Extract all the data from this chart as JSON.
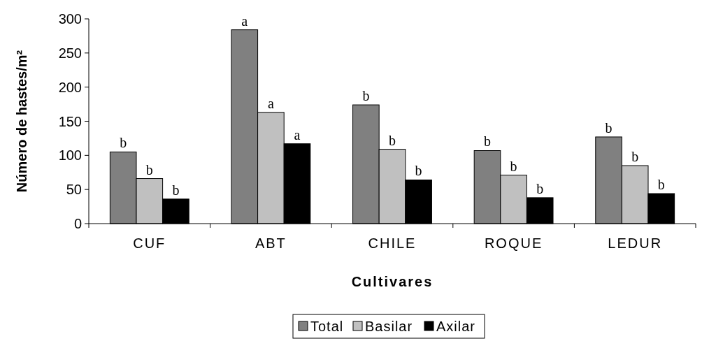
{
  "chart_data": {
    "type": "bar",
    "xlabel": "Cultivares",
    "ylabel": "Número de hastes/m²",
    "categories": [
      "CUF",
      "ABT",
      "CHILE",
      "ROQUE",
      "LEDUR"
    ],
    "series": [
      {
        "name": "Total",
        "color": "#808080",
        "values": [
          105,
          284,
          174,
          107,
          127
        ],
        "value_labels": [
          "b",
          "a",
          "b",
          "b",
          "b"
        ]
      },
      {
        "name": "Basilar",
        "color": "#c0c0c0",
        "values": [
          66,
          163,
          109,
          71,
          85
        ],
        "value_labels": [
          "b",
          "a",
          "b",
          "b",
          "b"
        ]
      },
      {
        "name": "Axilar",
        "color": "#000000",
        "values": [
          36,
          117,
          64,
          38,
          44
        ],
        "value_labels": [
          "b",
          "a",
          "b",
          "b",
          "b"
        ]
      }
    ],
    "ylim": [
      0,
      300
    ],
    "yticks": [
      0,
      50,
      100,
      150,
      200,
      250,
      300
    ],
    "grid": false,
    "legend": "bottom"
  }
}
